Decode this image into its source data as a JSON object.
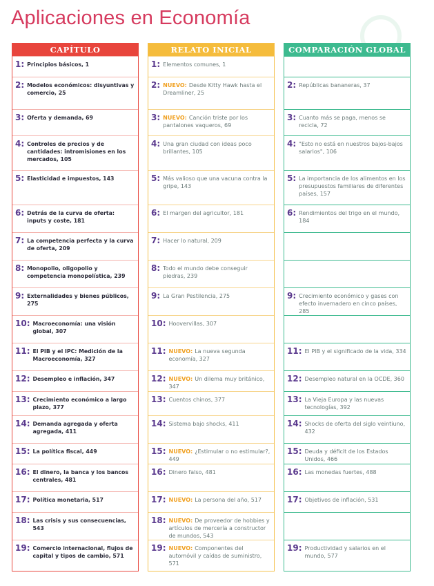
{
  "title": "Aplicaciones en Economía",
  "nuevo_label": "NUEVO:",
  "colors": {
    "title": "#d63a5e",
    "capitulo": "#e8453c",
    "relato": "#f5bc3c",
    "comparacion": "#3dba8f",
    "numbers": "#5b3a8e",
    "nuevo": "#f0a020"
  },
  "columns": [
    {
      "header": "CAPÍTULO",
      "rows": [
        {
          "n": "1:",
          "text": "Principios básicos, 1"
        },
        {
          "n": "2:",
          "text": "Modelos económicos: disyuntivas y comercio, 25"
        },
        {
          "n": "3:",
          "text": "Oferta y demanda, 69"
        },
        {
          "n": "4:",
          "text": "Controles de precios y de cantidades: intromisiones en los mercados, 105"
        },
        {
          "n": "5:",
          "text": "Elasticidad e impuestos, 143"
        },
        {
          "n": "6:",
          "text": "Detrás de la curva de oferta: inputs y coste, 181"
        },
        {
          "n": "7:",
          "text": "La competencia perfecta y la curva de oferta, 209"
        },
        {
          "n": "8:",
          "text": "Monopolio, oligopolio y competencia monopolística, 239"
        },
        {
          "n": "9:",
          "text": "Externalidades y bienes públicos, 275"
        },
        {
          "n": "10:",
          "text": "Macroeconomía: una visión global, 307"
        },
        {
          "n": "11:",
          "text": "El PIB y el IPC: Medición de la Macroeconomía, 327"
        },
        {
          "n": "12:",
          "text": "Desempleo e inflación, 347"
        },
        {
          "n": "13:",
          "text": "Crecimiento económico a largo plazo, 377"
        },
        {
          "n": "14:",
          "text": "Demanda agregada y oferta agregada, 411"
        },
        {
          "n": "15:",
          "text": "La política fiscal, 449"
        },
        {
          "n": "16:",
          "text": "El dinero, la banca y los bancos centrales, 481"
        },
        {
          "n": "17:",
          "text": "Política monetaria, 517"
        },
        {
          "n": "18:",
          "text": "Las crisis y sus consecuencias, 543"
        },
        {
          "n": "19:",
          "text": "Comercio internacional, flujos de capital y tipos de cambio, 571"
        }
      ]
    },
    {
      "header": "RELATO INICIAL",
      "rows": [
        {
          "n": "1:",
          "text": "Elementos comunes, 1"
        },
        {
          "n": "2:",
          "nuevo": true,
          "text": "Desde Kitty Hawk hasta el Dreamliner, 25"
        },
        {
          "n": "3:",
          "nuevo": true,
          "text": "Canción triste por los pantalones vaqueros, 69"
        },
        {
          "n": "4:",
          "text": "Una gran ciudad con ideas poco brillantes, 105"
        },
        {
          "n": "5:",
          "text": "Más valioso que una vacuna contra la gripe, 143"
        },
        {
          "n": "6:",
          "text": "El margen del agricultor, 181"
        },
        {
          "n": "7:",
          "text": "Hacer lo natural, 209"
        },
        {
          "n": "8:",
          "text": "Todo el mundo debe conseguir piedras, 239"
        },
        {
          "n": "9:",
          "text": "La Gran Pestilencia, 275"
        },
        {
          "n": "10:",
          "text": "Hoovervillas, 307"
        },
        {
          "n": "11:",
          "nuevo": true,
          "text": "La nueva segunda economía, 327"
        },
        {
          "n": "12:",
          "nuevo": true,
          "text": "Un dilema muy británico, 347"
        },
        {
          "n": "13:",
          "text": "Cuentos chinos, 377"
        },
        {
          "n": "14:",
          "text": "Sistema bajo shocks, 411"
        },
        {
          "n": "15:",
          "nuevo": true,
          "text": "¿Estimular o no estimular?, 449"
        },
        {
          "n": "16:",
          "text": "Dinero falso, 481"
        },
        {
          "n": "17:",
          "nuevo": true,
          "text": "La persona del año, 517"
        },
        {
          "n": "18:",
          "nuevo": true,
          "text": "De proveedor de hobbies y artículos de mercería a constructor de mundos, 543"
        },
        {
          "n": "19:",
          "nuevo": true,
          "text": "Componentes del automóvil y caídas de suministro, 571"
        }
      ]
    },
    {
      "header": "COMPARACIÓN GLOBAL",
      "rows": [
        {
          "n": "",
          "text": ""
        },
        {
          "n": "2:",
          "text": "Repúblicas bananeras, 37"
        },
        {
          "n": "3:",
          "text": "Cuanto más se paga, menos se recicla, 72"
        },
        {
          "n": "4:",
          "text": "\"Esto no está en nuestros bajos-bajos salarios\", 106"
        },
        {
          "n": "5:",
          "text": "La importancia de los alimentos en los presupuestos familiares de diferentes países, 157"
        },
        {
          "n": "6:",
          "text": "Rendimientos del trigo en el mundo, 184"
        },
        {
          "n": "",
          "text": ""
        },
        {
          "n": "",
          "text": ""
        },
        {
          "n": "9:",
          "text": "Crecimiento económico y gases con efecto invernadero en cinco países, 285"
        },
        {
          "n": "",
          "text": ""
        },
        {
          "n": "11:",
          "text": "El PIB y el significado de la vida, 334"
        },
        {
          "n": "12:",
          "text": "Desempleo natural en la OCDE, 360"
        },
        {
          "n": "13:",
          "text": "La Vieja Europa y las nuevas tecnologías, 392"
        },
        {
          "n": "14:",
          "text": "Shocks de oferta del siglo veintiuno, 432"
        },
        {
          "n": "15:",
          "text": "Deuda y déficit de los Estados Unidos, 466"
        },
        {
          "n": "16:",
          "text": "Las monedas fuertes, 488"
        },
        {
          "n": "17:",
          "text": "Objetivos de inflación, 531"
        },
        {
          "n": "",
          "text": ""
        },
        {
          "n": "19:",
          "text": "Productividad y salarios en el mundo, 577"
        }
      ]
    }
  ]
}
